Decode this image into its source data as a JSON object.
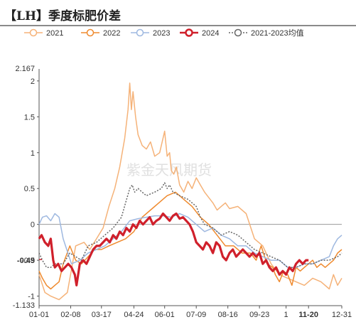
{
  "title": "【LH】季度标肥价差",
  "watermark": "紫金天风期货",
  "chart_data": {
    "type": "line",
    "title": "【LH】季度标肥价差",
    "ylim": [
      -1.133,
      2.167
    ],
    "yticks": [
      -1,
      -0.5,
      0,
      0.5,
      1,
      1.5,
      2
    ],
    "ytick_labels": [
      "-1",
      "-0.5",
      "0",
      "0.5",
      "1",
      "1.5",
      "2"
    ],
    "y_extreme_labels": {
      "max": "2.167",
      "min": "-1.133"
    },
    "xlim": [
      1,
      365
    ],
    "xticks": [
      {
        "day": 1,
        "label": "01-01"
      },
      {
        "day": 39,
        "label": "02-08"
      },
      {
        "day": 76,
        "label": "03-17"
      },
      {
        "day": 115,
        "label": "04-24"
      },
      {
        "day": 152,
        "label": "06-01"
      },
      {
        "day": 190,
        "label": "07-09"
      },
      {
        "day": 228,
        "label": "08-16"
      },
      {
        "day": 266,
        "label": "09-23"
      },
      {
        "day": 298,
        "label": "1"
      },
      {
        "day": 325,
        "label": "11-20"
      },
      {
        "day": 365,
        "label": "12-31"
      }
    ],
    "highlight_x": {
      "day": 325,
      "label": "11-20",
      "color": "#c8202b"
    },
    "current_value": {
      "value": -0.49,
      "label": "-0.49",
      "color": "#c8202b"
    },
    "legend_position": "top",
    "series": [
      {
        "name": "2021",
        "color": "#f5b278",
        "width": 1.5,
        "dash": "",
        "x": [
          1,
          8,
          15,
          25,
          35,
          45,
          55,
          62,
          70,
          78,
          85,
          92,
          98,
          104,
          108,
          110,
          112,
          114,
          117,
          120,
          125,
          130,
          135,
          140,
          146,
          150,
          152,
          155,
          158,
          160,
          163,
          166,
          170,
          175,
          180,
          185,
          190,
          195,
          200,
          210,
          215,
          220,
          225,
          230,
          240,
          250,
          260,
          265,
          270,
          280,
          290,
          300,
          310,
          320,
          330,
          340,
          350,
          355,
          360,
          365
        ],
        "y": [
          -0.7,
          -0.95,
          -1.0,
          -1.05,
          -0.95,
          -0.3,
          -0.25,
          -0.35,
          -0.2,
          -0.05,
          0.25,
          0.5,
          0.8,
          1.2,
          1.6,
          1.97,
          1.6,
          1.85,
          1.5,
          1.25,
          1.1,
          1.05,
          1.15,
          0.95,
          1.0,
          1.2,
          1.3,
          0.95,
          1.0,
          0.75,
          0.7,
          0.8,
          0.55,
          0.45,
          0.6,
          0.5,
          0.65,
          0.55,
          0.45,
          0.3,
          0.2,
          0.25,
          0.3,
          0.22,
          0.25,
          0.15,
          -0.2,
          -0.25,
          -0.3,
          -0.55,
          -0.7,
          -0.75,
          -0.8,
          -0.85,
          -0.75,
          -0.8,
          -0.9,
          -0.7,
          -0.85,
          -0.75
        ]
      },
      {
        "name": "2022",
        "color": "#ef8a2e",
        "width": 1.5,
        "dash": "",
        "x": [
          1,
          5,
          10,
          15,
          20,
          25,
          30,
          38,
          45,
          52,
          60,
          68,
          76,
          85,
          95,
          105,
          115,
          125,
          135,
          145,
          155,
          165,
          175,
          185,
          195,
          205,
          215,
          225,
          235,
          245,
          255,
          262,
          268,
          275,
          282,
          285,
          290,
          295,
          300,
          305,
          310,
          315,
          320,
          325,
          330,
          335,
          340,
          345,
          350,
          355,
          360,
          365
        ],
        "y": [
          -0.65,
          -0.75,
          -0.85,
          -0.9,
          -0.85,
          -0.8,
          -0.55,
          -0.3,
          -0.5,
          -0.55,
          -0.45,
          -0.35,
          -0.35,
          -0.3,
          -0.25,
          -0.2,
          -0.1,
          0.1,
          0.2,
          0.3,
          0.4,
          0.45,
          0.35,
          0.25,
          0.1,
          0.0,
          -0.15,
          -0.3,
          -0.3,
          -0.4,
          -0.4,
          -0.5,
          -0.3,
          -0.55,
          -0.6,
          -0.7,
          -0.8,
          -0.65,
          -0.7,
          -0.85,
          -0.6,
          -0.65,
          -0.6,
          -0.55,
          -0.5,
          -0.6,
          -0.55,
          -0.6,
          -0.55,
          -0.5,
          -0.4,
          -0.35
        ]
      },
      {
        "name": "2023",
        "color": "#9eb8e0",
        "width": 1.5,
        "dash": "",
        "x": [
          1,
          5,
          10,
          15,
          20,
          25,
          30,
          40,
          50,
          60,
          70,
          80,
          90,
          100,
          110,
          120,
          130,
          140,
          150,
          160,
          170,
          180,
          190,
          200,
          210,
          220,
          230,
          240,
          250,
          260,
          270,
          280,
          290,
          300,
          310,
          320,
          330,
          340,
          350,
          355,
          360,
          365
        ],
        "y": [
          0.0,
          0.1,
          0.12,
          0.05,
          0.15,
          0.1,
          -0.2,
          -0.55,
          -0.5,
          -0.4,
          -0.35,
          -0.3,
          -0.2,
          -0.1,
          0.05,
          0.08,
          0.1,
          0.12,
          0.12,
          0.1,
          0.15,
          0.1,
          0.0,
          -0.1,
          -0.05,
          -0.15,
          -0.2,
          -0.3,
          -0.3,
          -0.4,
          -0.45,
          -0.5,
          -0.5,
          -0.6,
          -0.6,
          -0.55,
          -0.55,
          -0.5,
          -0.45,
          -0.3,
          -0.2,
          -0.15
        ]
      },
      {
        "name": "2024",
        "color": "#d0202b",
        "width": 3.2,
        "dash": "",
        "x": [
          1,
          4,
          8,
          12,
          15,
          18,
          20,
          24,
          28,
          32,
          36,
          40,
          44,
          46,
          50,
          54,
          58,
          62,
          66,
          70,
          74,
          78,
          82,
          86,
          90,
          94,
          98,
          102,
          106,
          110,
          114,
          118,
          122,
          126,
          130,
          134,
          138,
          142,
          146,
          150,
          154,
          158,
          162,
          166,
          170,
          174,
          178,
          182,
          186,
          190,
          194,
          198,
          202,
          206,
          210,
          214,
          218,
          222,
          226,
          230,
          234,
          238,
          242,
          246,
          250,
          254,
          258,
          262,
          266,
          270,
          274,
          278,
          282,
          286,
          290,
          294,
          298,
          302,
          306,
          310,
          314,
          318,
          322,
          325
        ],
        "y": [
          -0.2,
          -0.15,
          -0.25,
          -0.3,
          -0.2,
          -0.5,
          -0.6,
          -0.55,
          -0.65,
          -0.6,
          -0.55,
          -0.6,
          -0.7,
          -0.85,
          -0.55,
          -0.5,
          -0.55,
          -0.45,
          -0.35,
          -0.3,
          -0.3,
          -0.25,
          -0.2,
          -0.25,
          -0.15,
          -0.2,
          -0.1,
          -0.15,
          -0.05,
          -0.1,
          0.0,
          -0.05,
          0.05,
          0.0,
          0.05,
          0.1,
          0.0,
          0.05,
          0.08,
          0.15,
          0.1,
          0.05,
          0.12,
          0.15,
          0.08,
          0.1,
          0.05,
          0.0,
          -0.1,
          -0.25,
          -0.3,
          -0.35,
          -0.25,
          -0.3,
          -0.4,
          -0.25,
          -0.3,
          -0.45,
          -0.5,
          -0.4,
          -0.35,
          -0.45,
          -0.4,
          -0.35,
          -0.4,
          -0.45,
          -0.4,
          -0.45,
          -0.4,
          -0.55,
          -0.5,
          -0.6,
          -0.65,
          -0.6,
          -0.7,
          -0.65,
          -0.7,
          -0.6,
          -0.65,
          -0.55,
          -0.5,
          -0.55,
          -0.5,
          -0.5
        ]
      },
      {
        "name": "2021-2023均值",
        "color": "#666666",
        "width": 1.5,
        "dash": "2,2",
        "x": [
          1,
          5,
          10,
          15,
          20,
          25,
          30,
          38,
          45,
          52,
          60,
          70,
          80,
          90,
          100,
          105,
          110,
          113,
          116,
          120,
          125,
          130,
          140,
          148,
          152,
          155,
          158,
          162,
          170,
          180,
          190,
          195,
          200,
          210,
          220,
          230,
          240,
          250,
          260,
          270,
          280,
          290,
          300,
          310,
          320,
          330,
          340,
          350,
          360,
          365
        ],
        "y": [
          -0.4,
          -0.5,
          -0.6,
          -0.6,
          -0.55,
          -0.55,
          -0.55,
          -0.4,
          -0.45,
          -0.5,
          -0.3,
          -0.25,
          -0.15,
          -0.05,
          0.1,
          0.3,
          0.5,
          0.55,
          0.45,
          0.5,
          0.45,
          0.4,
          0.45,
          0.5,
          0.58,
          0.5,
          0.55,
          0.45,
          0.4,
          0.35,
          0.25,
          0.1,
          0.0,
          -0.05,
          -0.15,
          -0.1,
          -0.15,
          -0.25,
          -0.35,
          -0.4,
          -0.45,
          -0.5,
          -0.6,
          -0.6,
          -0.55,
          -0.55,
          -0.5,
          -0.5,
          -0.45,
          -0.4
        ]
      }
    ]
  }
}
